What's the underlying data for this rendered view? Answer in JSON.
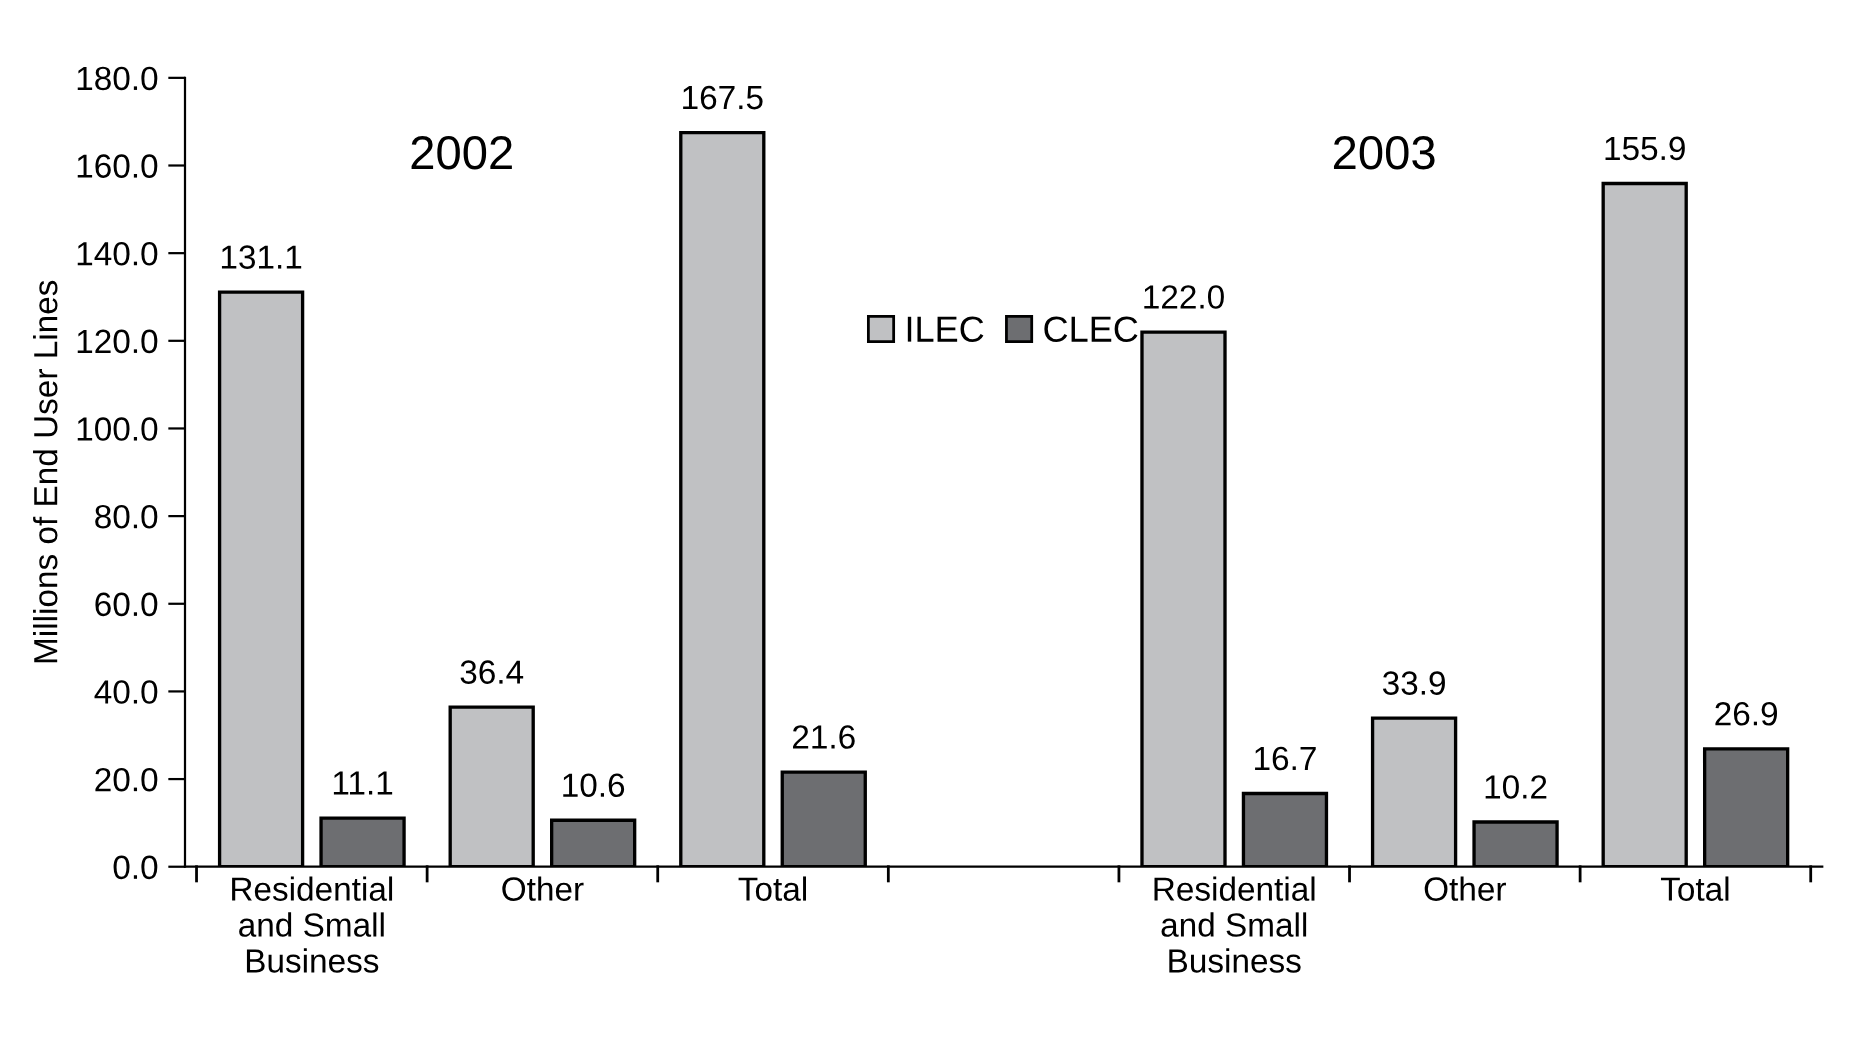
{
  "chart_data": {
    "type": "bar",
    "ylabel": "Millions of End User Lines",
    "categories": [
      "Residential\nand Small\nBusiness",
      "Other",
      "Total",
      null,
      "Residential\nand Small\nBusiness",
      "Other",
      "Total"
    ],
    "series": [
      {
        "name": "ILEC",
        "color": "#c0c1c3",
        "values": [
          131.1,
          36.4,
          167.5,
          null,
          122.0,
          33.9,
          155.9
        ],
        "value_labels": [
          "131.1",
          "36.4",
          "167.5",
          null,
          "122.0",
          "33.9",
          "155.9"
        ]
      },
      {
        "name": "CLEC",
        "color": "#6d6e71",
        "values": [
          11.1,
          10.6,
          21.6,
          null,
          16.7,
          10.2,
          26.9
        ],
        "value_labels": [
          "11.1",
          "10.6",
          "21.6",
          null,
          "16.7",
          "10.2",
          "26.9"
        ]
      }
    ],
    "annotations": [
      "2002",
      "2003"
    ],
    "ylim": [
      0,
      180
    ],
    "yticks": [
      {
        "value": 0,
        "label": "0.0"
      },
      {
        "value": 20,
        "label": "20.0"
      },
      {
        "value": 40,
        "label": "40.0"
      },
      {
        "value": 60,
        "label": "60.0"
      },
      {
        "value": 80,
        "label": "80.0"
      },
      {
        "value": 100,
        "label": "100.0"
      },
      {
        "value": 120,
        "label": "120.0"
      },
      {
        "value": 140,
        "label": "140.0"
      },
      {
        "value": 160,
        "label": "160.0"
      },
      {
        "value": 180,
        "label": "180.0"
      }
    ],
    "legend": "top",
    "grid": false
  }
}
